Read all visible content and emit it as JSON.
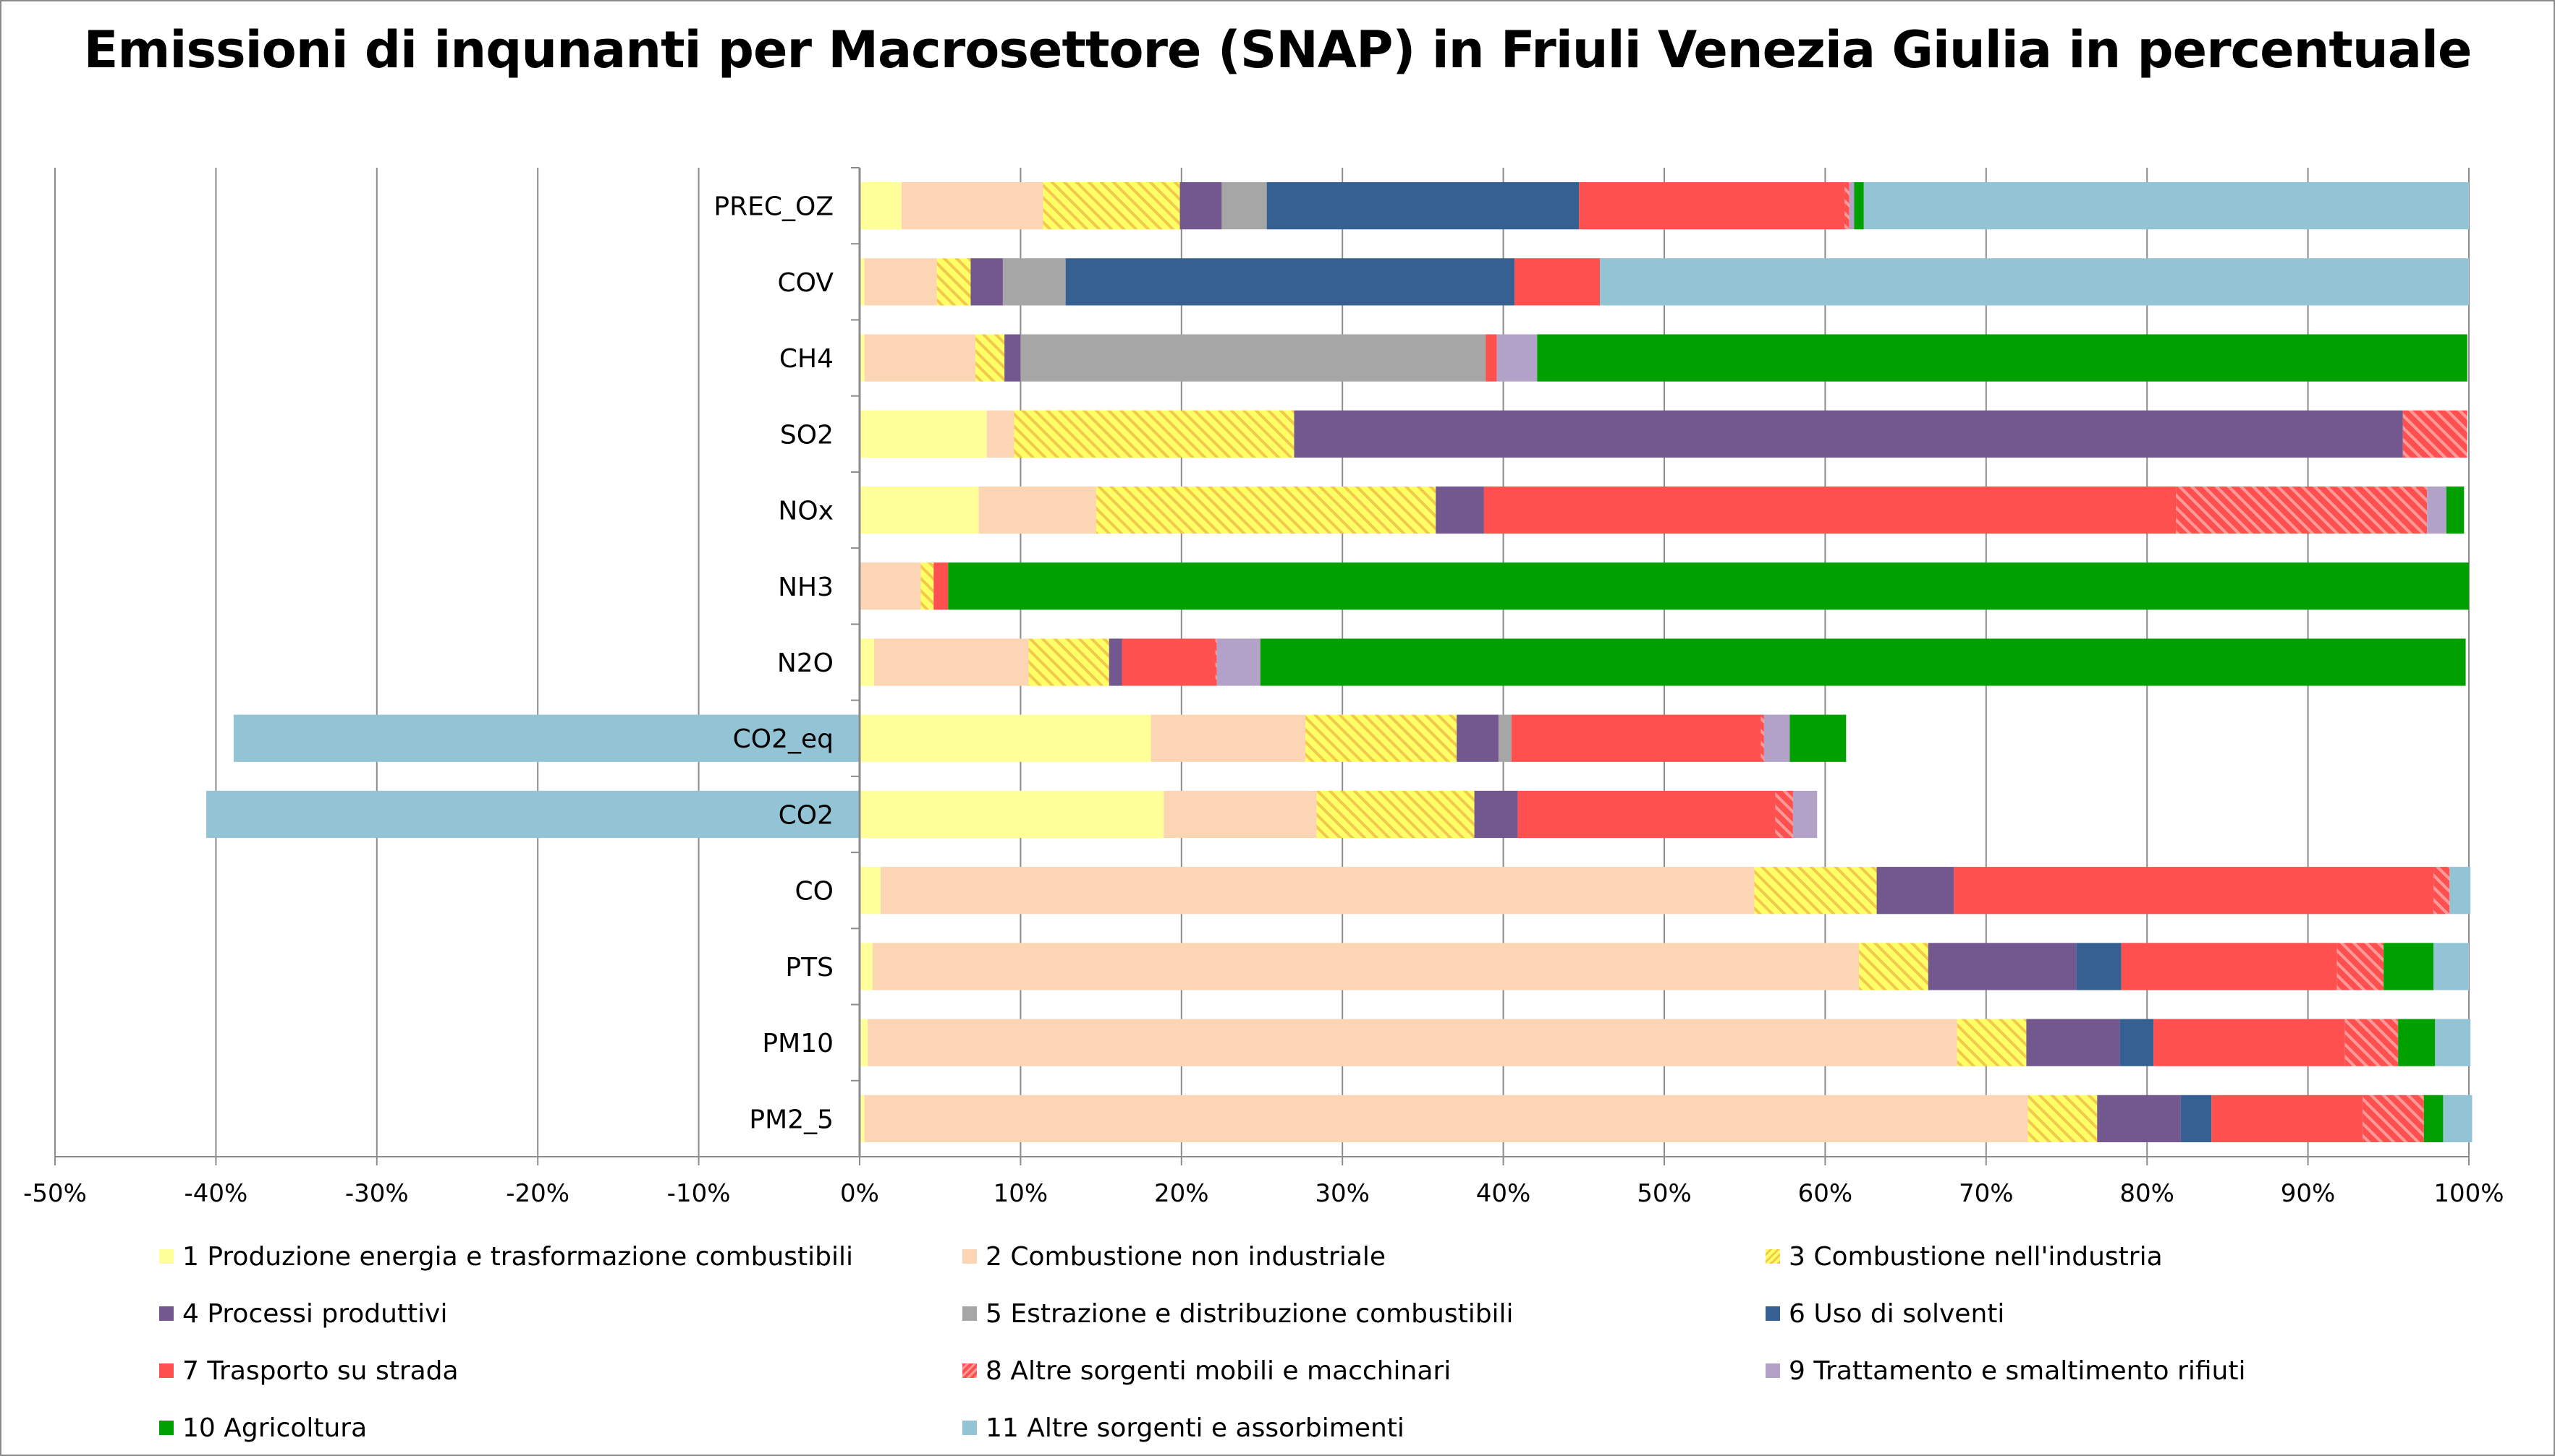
{
  "chart_data": {
    "type": "bar",
    "orientation": "horizontal",
    "stacked": true,
    "title": "Emissioni di inqunanti per Macrosettore (SNAP) in Friuli Venezia Giulia in percentuale",
    "xlabel": "",
    "ylabel": "",
    "xlim": [
      -50,
      100
    ],
    "x_ticks": [
      "-50%",
      "-40%",
      "-30%",
      "-20%",
      "-10%",
      "0%",
      "10%",
      "20%",
      "30%",
      "40%",
      "50%",
      "60%",
      "70%",
      "80%",
      "90%",
      "100%"
    ],
    "grid": "vertical",
    "legend_position": "bottom",
    "categories": [
      "PREC_OZ",
      "COV",
      "CH4",
      "SO2",
      "NOx",
      "NH3",
      "N2O",
      "CO2_eq",
      "CO2",
      "CO",
      "PTS",
      "PM10",
      "PM2_5"
    ],
    "category_labels": [
      "PREC_OZ",
      "COV",
      "CH4",
      "SO2",
      "NOx",
      "NH3",
      "N2O",
      "CO2_eq",
      "CO2",
      "CO",
      "PTS",
      "PM10",
      "PM2_5"
    ],
    "series": [
      {
        "name": "1 Produzione energia e trasformazione combustibili",
        "color": "#ffff99",
        "pattern": "solid",
        "values": [
          2.6,
          0.3,
          0.3,
          7.9,
          7.4,
          0.0,
          0.9,
          18.1,
          18.9,
          1.3,
          0.8,
          0.5,
          0.3
        ]
      },
      {
        "name": "2 Combustione non industriale",
        "color": "#fcd5b5",
        "pattern": "solid",
        "values": [
          8.8,
          4.5,
          6.9,
          1.7,
          7.3,
          3.8,
          9.6,
          9.6,
          9.5,
          54.3,
          61.3,
          67.7,
          72.3
        ]
      },
      {
        "name": "3 Combustione nell'industria",
        "color": "#ffff66",
        "pattern": "hatch-yellow",
        "values": [
          8.5,
          2.1,
          1.8,
          17.4,
          21.1,
          0.8,
          5.0,
          9.4,
          9.8,
          7.6,
          4.3,
          4.3,
          4.3
        ]
      },
      {
        "name": "4 Processi produttivi",
        "color": "#73578f",
        "pattern": "solid",
        "values": [
          2.6,
          2.0,
          1.0,
          68.9,
          3.0,
          0.0,
          0.8,
          2.6,
          2.7,
          4.8,
          9.2,
          5.8,
          5.2
        ]
      },
      {
        "name": "5 Estrazione e distribuzione combustibili",
        "color": "#a6a6a6",
        "pattern": "solid",
        "values": [
          2.8,
          3.9,
          28.9,
          0.0,
          0.0,
          0.0,
          0.0,
          0.8,
          0.0,
          0.0,
          0.0,
          0.0,
          0.0
        ]
      },
      {
        "name": "6 Uso di solventi",
        "color": "#376092",
        "pattern": "solid",
        "values": [
          19.4,
          27.9,
          0.0,
          0.0,
          0.0,
          0.0,
          0.0,
          0.0,
          0.0,
          0.0,
          2.8,
          2.1,
          1.9
        ]
      },
      {
        "name": "7 Trasporto su strada",
        "color": "#ff5050",
        "pattern": "solid",
        "values": [
          16.5,
          5.3,
          0.7,
          0.0,
          43.0,
          0.9,
          5.8,
          15.5,
          16.0,
          29.8,
          13.4,
          11.9,
          9.4
        ]
      },
      {
        "name": "8 Altre sorgenti mobili e macchinari",
        "color": "#ff5050",
        "pattern": "hatch-red",
        "values": [
          0.3,
          0.0,
          0.0,
          4.0,
          15.6,
          0.0,
          0.1,
          0.2,
          1.1,
          1.0,
          2.9,
          3.3,
          3.8
        ]
      },
      {
        "name": "9 Trattamento e smaltimento rifiuti",
        "color": "#b3a2c7",
        "pattern": "solid",
        "values": [
          0.3,
          0.0,
          2.5,
          0.0,
          1.2,
          0.0,
          2.7,
          1.6,
          1.5,
          0.0,
          0.0,
          0.0,
          0.0
        ]
      },
      {
        "name": "10 Agricoltura",
        "color": "#00a000",
        "pattern": "solid",
        "values": [
          0.6,
          0.0,
          57.8,
          0.0,
          1.1,
          94.5,
          74.9,
          3.5,
          0.0,
          0.0,
          3.1,
          2.3,
          1.2
        ]
      },
      {
        "name": "11 Altre sorgenti e assorbimenti",
        "color": "#93c4d5",
        "pattern": "solid",
        "values": [
          37.6,
          54.0,
          0.0,
          0.0,
          0.0,
          0.0,
          0.0,
          -38.9,
          -40.6,
          1.3,
          2.2,
          2.2,
          1.8
        ]
      }
    ]
  }
}
